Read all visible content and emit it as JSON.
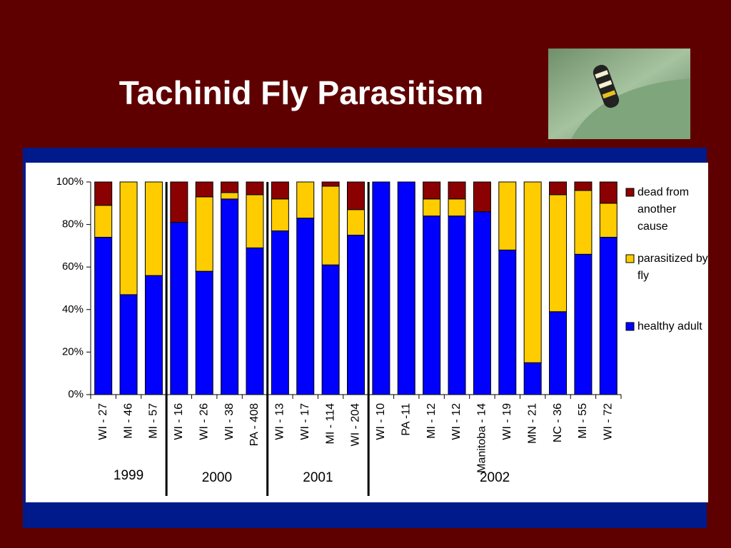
{
  "chart_data": {
    "type": "stacked_bar",
    "title": "Tachinid Fly Parasitism",
    "groups": [
      {
        "label": "1999",
        "categories": [
          "WI - 27",
          "MI - 46",
          "MI - 57"
        ]
      },
      {
        "label": "2000",
        "categories": [
          "WI - 16",
          "WI - 26",
          "WI - 38",
          "PA - 408"
        ]
      },
      {
        "label": "2001",
        "categories": [
          "WI - 13",
          "WI - 17",
          "MI - 114",
          "WI - 204"
        ]
      },
      {
        "label": "2002",
        "categories": [
          "WI - 10",
          "PA -11",
          "MI - 12",
          "WI - 12",
          "Manitoba - 14",
          "WI - 19",
          "MN - 21",
          "NC - 36",
          "MI - 55",
          "WI - 72"
        ]
      }
    ],
    "series": [
      {
        "name": "healthy adult",
        "color": "#0000ff",
        "values": [
          74,
          47,
          56,
          81,
          58,
          92,
          69,
          77,
          83,
          61,
          75,
          100,
          100,
          84,
          84,
          86,
          68,
          15,
          39,
          66,
          74
        ]
      },
      {
        "name": "parasitized by fly",
        "color": "#ffcc00",
        "values": [
          15,
          53,
          44,
          0,
          35,
          3,
          25,
          15,
          17,
          37,
          12,
          0,
          0,
          8,
          8,
          0,
          32,
          85,
          55,
          30,
          16
        ]
      },
      {
        "name": "dead from another cause",
        "color": "#8b0000",
        "values": [
          11,
          0,
          0,
          19,
          7,
          5,
          6,
          8,
          0,
          2,
          13,
          0,
          0,
          8,
          8,
          14,
          0,
          0,
          6,
          4,
          10
        ]
      }
    ],
    "ylim": [
      0,
      100
    ],
    "yticks": [
      {
        "value": 0,
        "label": "0%"
      },
      {
        "value": 20,
        "label": "20%"
      },
      {
        "value": 40,
        "label": "40%"
      },
      {
        "value": 60,
        "label": "60%"
      },
      {
        "value": 80,
        "label": "80%"
      },
      {
        "value": 100,
        "label": "100%"
      }
    ],
    "legend": "right"
  }
}
